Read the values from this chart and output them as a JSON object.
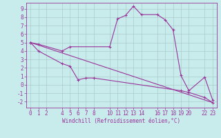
{
  "xlabel": "Windchill (Refroidissement éolien,°C)",
  "bg_color": "#c8ecec",
  "line_color": "#993399",
  "grid_color": "#aacccc",
  "xlim": [
    -0.5,
    23.5
  ],
  "ylim": [
    -2.7,
    9.7
  ],
  "yticks": [
    -2,
    -1,
    0,
    1,
    2,
    3,
    4,
    5,
    6,
    7,
    8,
    9
  ],
  "xticks": [
    0,
    1,
    2,
    4,
    5,
    6,
    7,
    8,
    10,
    11,
    12,
    13,
    14,
    16,
    17,
    18,
    19,
    20,
    22,
    23
  ],
  "line1_x": [
    0,
    1,
    4,
    5,
    10,
    11,
    12,
    13,
    14,
    16,
    17,
    18,
    19,
    20,
    22,
    23
  ],
  "line1_y": [
    5.0,
    4.8,
    4.0,
    4.5,
    4.5,
    7.8,
    8.2,
    9.3,
    8.3,
    8.3,
    7.7,
    6.5,
    1.1,
    -0.7,
    0.9,
    -1.8
  ],
  "line2_x": [
    0,
    1,
    4,
    5,
    6,
    7,
    8,
    19,
    20,
    22,
    23
  ],
  "line2_y": [
    5.0,
    4.0,
    2.5,
    2.2,
    0.6,
    0.8,
    0.8,
    -0.7,
    -0.9,
    -1.5,
    -2.1
  ],
  "line3_x": [
    0,
    23
  ],
  "line3_y": [
    5.0,
    -2.1
  ],
  "markersize": 2.5,
  "linewidth": 0.8,
  "tick_fontsize": 5.5,
  "xlabel_fontsize": 5.5
}
